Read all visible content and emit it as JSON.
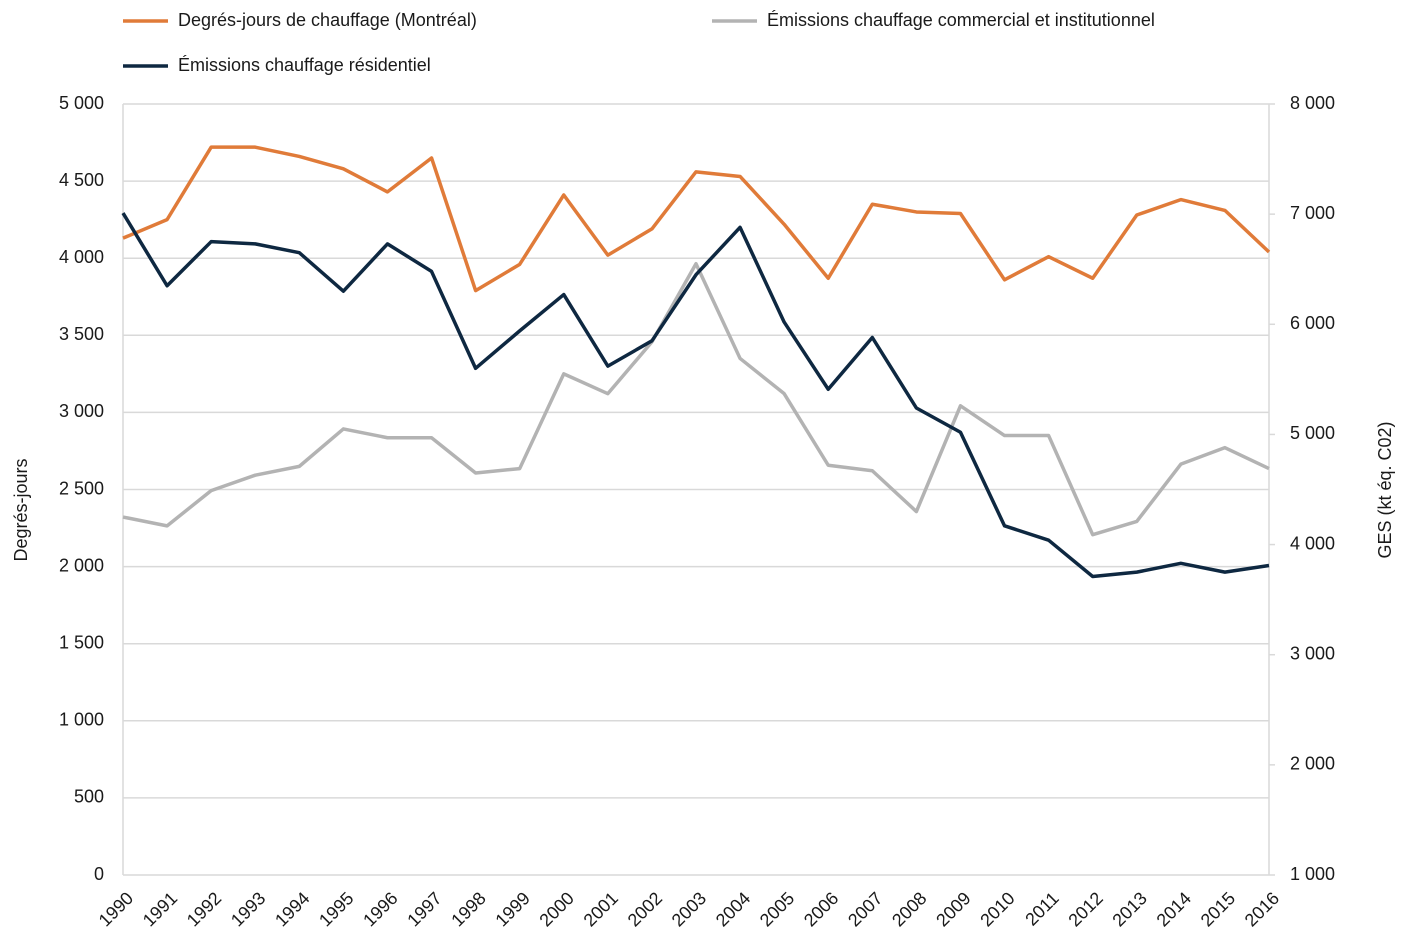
{
  "chart_data": {
    "type": "line",
    "categories": [
      "1990",
      "1991",
      "1992",
      "1993",
      "1994",
      "1995",
      "1996",
      "1997",
      "1998",
      "1999",
      "2000",
      "2001",
      "2002",
      "2003",
      "2004",
      "2005",
      "2006",
      "2007",
      "2008",
      "2009",
      "2010",
      "2011",
      "2012",
      "2013",
      "2014",
      "2015",
      "2016"
    ],
    "series": [
      {
        "name": "Degrés-jours de chauffage (Montréal)",
        "color": "#e07b39",
        "values": [
          4130,
          4250,
          4720,
          4720,
          4660,
          4580,
          4430,
          4650,
          3790,
          3960,
          4410,
          4020,
          4190,
          4560,
          4530,
          4220,
          3870,
          4350,
          4300,
          4290,
          3860,
          4010,
          3870,
          4280,
          4380,
          4310,
          4040
        ]
      },
      {
        "name": "Émissions chauffage commercial et institutionnel",
        "color": "#b3b3b3",
        "axis": "y2",
        "values": [
          4250,
          4170,
          4490,
          4630,
          4710,
          5050,
          4970,
          4970,
          4650,
          4690,
          5550,
          5370,
          5840,
          6550,
          5690,
          5370,
          4720,
          4670,
          4300,
          5260,
          4990,
          4990,
          4090,
          4210,
          4730,
          4880,
          4690
        ]
      },
      {
        "name": "Émissions chauffage résidentiel",
        "color": "#0e2841",
        "axis": "y2",
        "values": [
          7010,
          6350,
          6750,
          6730,
          6650,
          6300,
          6730,
          6480,
          5600,
          5940,
          6270,
          5620,
          5850,
          6450,
          6880,
          6020,
          5410,
          5880,
          5240,
          5020,
          4170,
          4040,
          3710,
          3750,
          3830,
          3750,
          3810
        ]
      }
    ],
    "y_label": "Degrés-jours",
    "y2_label": "GES (kt éq. C02)",
    "ylim": [
      0,
      5000
    ],
    "yticks": [
      0,
      500,
      {
        "value": 1000,
        "label": "1 000"
      },
      {
        "value": 1500,
        "label": "1 500"
      },
      {
        "value": 2000,
        "label": "2 000"
      },
      {
        "value": 2500,
        "label": "2 500"
      },
      {
        "value": 3000,
        "label": "3 000"
      },
      {
        "value": 3500,
        "label": "3 500"
      },
      {
        "value": 4000,
        "label": "4 000"
      },
      {
        "value": 4500,
        "label": "4 500"
      },
      {
        "value": 5000,
        "label": "5 000"
      }
    ],
    "y2lim": [
      1000,
      8000
    ],
    "y2ticks": [
      {
        "value": 1000,
        "label": "1 000"
      },
      {
        "value": 2000,
        "label": "2 000"
      },
      {
        "value": 3000,
        "label": "3 000"
      },
      {
        "value": 4000,
        "label": "4 000"
      },
      {
        "value": 5000,
        "label": "5 000"
      },
      {
        "value": 6000,
        "label": "6 000"
      },
      {
        "value": 7000,
        "label": "7 000"
      },
      {
        "value": 8000,
        "label": "8 000"
      }
    ],
    "grid": true
  }
}
